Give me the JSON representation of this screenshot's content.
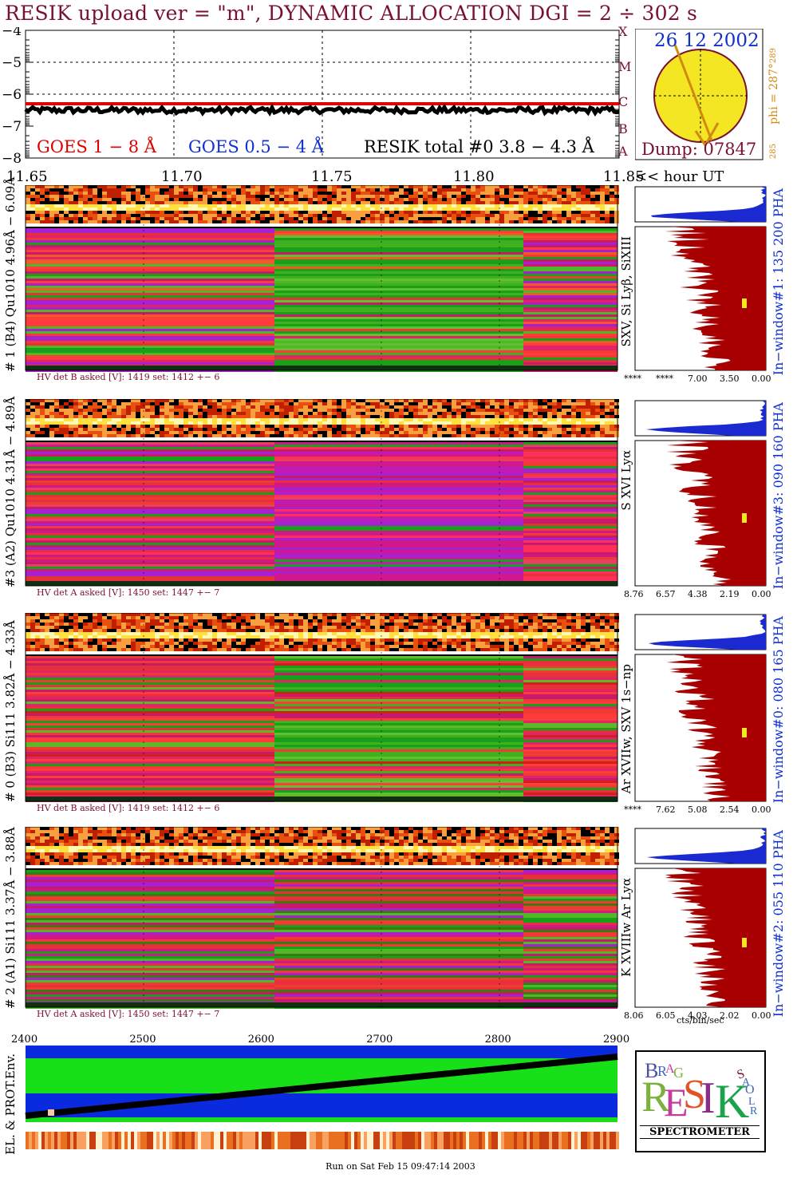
{
  "header": {
    "title": "RESIK upload ver = \"m\", DYNAMIC ALLOCATION  DGI =   2 ÷ 302 s"
  },
  "goes_panel": {
    "yticks": [
      "−4",
      "−5",
      "−6",
      "−7",
      "−8"
    ],
    "legend_red": "GOES 1 − 8 Å",
    "legend_blue": "GOES 0.5 − 4 Å",
    "legend_black": "RESIK total #0  3.8 − 4.3 Å"
  },
  "sun_panel": {
    "date": "26 12 2002",
    "dump": "Dump: 07847",
    "letters": [
      "X",
      "M",
      "C",
      "B",
      "A"
    ],
    "phi_label": "phi = 287°",
    "phi_top": "289",
    "phi_bottom": "285"
  },
  "time_axis": {
    "ticks": [
      "11.65",
      "11.70",
      "11.75",
      "11.80",
      "11.85"
    ],
    "unit_label": "<< hour UT"
  },
  "panels": [
    {
      "left_label": "# 1 (B4) Qu1010 4.96Å − 6.09Å",
      "right_label": "SXV, Si Lyβ, SiXIII",
      "window_label": "In−window#1:  135 200 PHA",
      "hv": "HV det B asked [V]:  1419 set:  1412 +−    6",
      "xticks": [
        "****",
        "****",
        "7.00",
        "3.50",
        "0.00"
      ]
    },
    {
      "left_label": "#3 (A2) Qu1010  4.31Å − 4.89Å",
      "right_label": "S XVI Lyα",
      "window_label": "In−window#3:  090 160 PHA",
      "hv": "HV det A asked [V]:  1450 set:  1447 +−    7",
      "xticks": [
        "8.76",
        "6.57",
        "4.38",
        "2.19",
        "0.00"
      ]
    },
    {
      "left_label": "# 0 (B3) Si111  3.82Å − 4.33Å",
      "right_label": "Ar XVIIw,  SXV 1s−np",
      "window_label": "In−window#0:  080 165 PHA",
      "hv": "HV det B asked [V]:  1419 set:  1412 +−    6",
      "xticks": [
        "****",
        "7.62",
        "5.08",
        "2.54",
        "0.00"
      ]
    },
    {
      "left_label": "# 2 (A1) Si111  3.37Å − 3.88Å",
      "right_label": "K XVIIIw  Ar Lyα",
      "window_label": "In−window#2:  055 110 PHA",
      "hv": "HV det A asked [V]:  1450 set:  1447 +−    7",
      "xticks": [
        "8.06",
        "6.05",
        "4.03",
        "2.02",
        "0.00"
      ]
    }
  ],
  "hist_unit": "cts/bin/sec",
  "env_panel": {
    "label": "EL. & PROT.Env.",
    "xticks": [
      "2400",
      "2500",
      "2600",
      "2700",
      "2800",
      "2900"
    ]
  },
  "logo": {
    "text": "SPECTROMETER",
    "letters": [
      "R",
      "E",
      "S",
      "I",
      "K",
      "B",
      "R",
      "A",
      "G",
      "S",
      "O",
      "L",
      "A",
      "R"
    ]
  },
  "footer": "Run on Sat Feb 15 09:47:14 2003",
  "chart_data": {
    "type": "heatmap",
    "title": "RESIK upload ver = \"m\", DYNAMIC ALLOCATION  DGI =   2 ÷ 302 s",
    "xlabel": "<< hour UT",
    "xlim": [
      11.65,
      11.85
    ],
    "goes_ylim": [
      -8,
      -4
    ],
    "series": [
      {
        "name": "GOES 1 − 8 Å",
        "level": -6.3
      },
      {
        "name": "RESIK total #0  3.8 − 4.3 Å",
        "level": -6.5
      }
    ]
  }
}
